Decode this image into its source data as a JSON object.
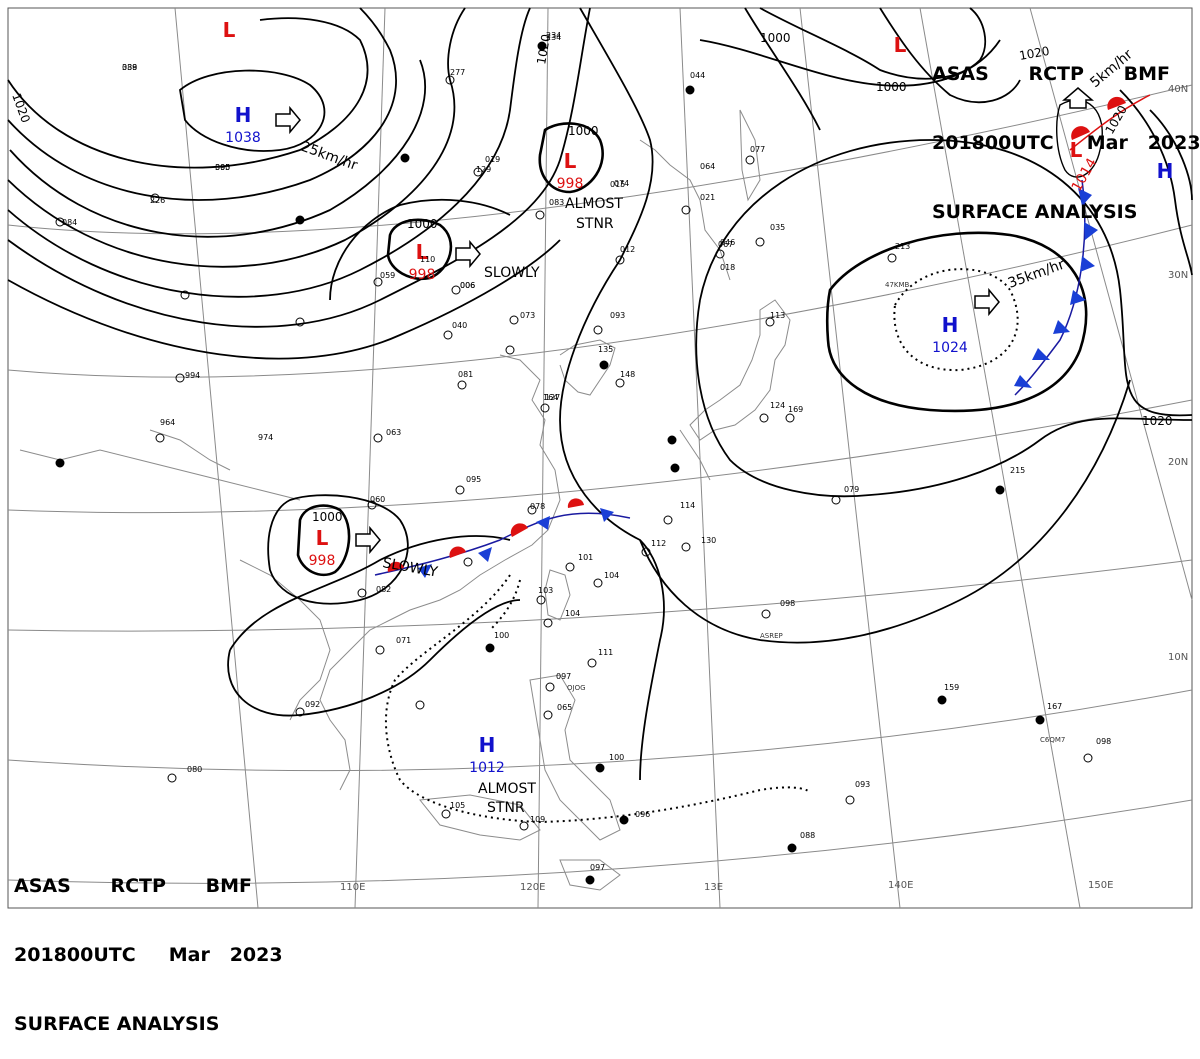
{
  "header": {
    "agency": "ASAS",
    "station": "RCTP",
    "office": "BMF",
    "time": "201800UTC",
    "month": "Mar",
    "year": "2023",
    "product": "SURFACE ANALYSIS"
  },
  "longitude_labels": [
    "110E",
    "120E",
    "13E",
    "140E",
    "150E"
  ],
  "latitude_labels": [
    "40N",
    "30N",
    "20N",
    "10N"
  ],
  "pressure_centers": [
    {
      "type": "H",
      "value": "1038",
      "color": "#1111cc"
    },
    {
      "type": "L",
      "value": "998",
      "color": "#dd1111"
    },
    {
      "type": "L",
      "value": "998",
      "color": "#dd1111"
    },
    {
      "type": "L",
      "value": "998",
      "color": "#dd1111"
    },
    {
      "type": "H",
      "value": "1024",
      "color": "#1111cc"
    },
    {
      "type": "H",
      "value": "1012",
      "color": "#1111cc"
    },
    {
      "type": "L",
      "value": "1014",
      "color": "#dd1111"
    },
    {
      "type": "L",
      "value": "",
      "color": "#dd1111"
    },
    {
      "type": "L",
      "value": "",
      "color": "#dd1111"
    },
    {
      "type": "H",
      "value": "",
      "color": "#1111cc"
    }
  ],
  "isobar_labels": [
    "1020",
    "1020",
    "1000",
    "1000",
    "1000",
    "1000",
    "1000",
    "1020",
    "1020",
    "1020"
  ],
  "motion_labels": [
    "25km/hr",
    "SLOWLY",
    "ALMOST",
    "STNR",
    "SLOWLY",
    "35km/hr",
    "ALMOST",
    "STNR",
    "5km/hr"
  ],
  "station_obs": [
    "338",
    "300",
    "226",
    "006",
    "277",
    "019",
    "234",
    "234",
    "044",
    "064",
    "077",
    "015",
    "084",
    "213",
    "046",
    "059",
    "006",
    "040",
    "081",
    "073",
    "093",
    "148",
    "135",
    "018",
    "164",
    "169",
    "113",
    "974",
    "994",
    "964",
    "127",
    "124",
    "095",
    "060",
    "063",
    "078",
    "114",
    "112",
    "130",
    "101",
    "104",
    "103",
    "104",
    "082",
    "071",
    "100",
    "111",
    "097",
    "065",
    "100",
    "105",
    "109",
    "096",
    "097",
    "080",
    "092",
    "098",
    "079",
    "215",
    "159",
    "167",
    "098",
    "093",
    "088",
    "083",
    "074",
    "021",
    "012",
    "067",
    "035",
    "110",
    "129",
    "089",
    "095"
  ],
  "station_ids": [
    "47KMB",
    "ASREP",
    "OJOG",
    "C6QM7"
  ],
  "colors": {
    "high": "#1111cc",
    "low": "#dd1111",
    "isobar": "#000000",
    "grid": "#777777",
    "coast": "#888888"
  }
}
